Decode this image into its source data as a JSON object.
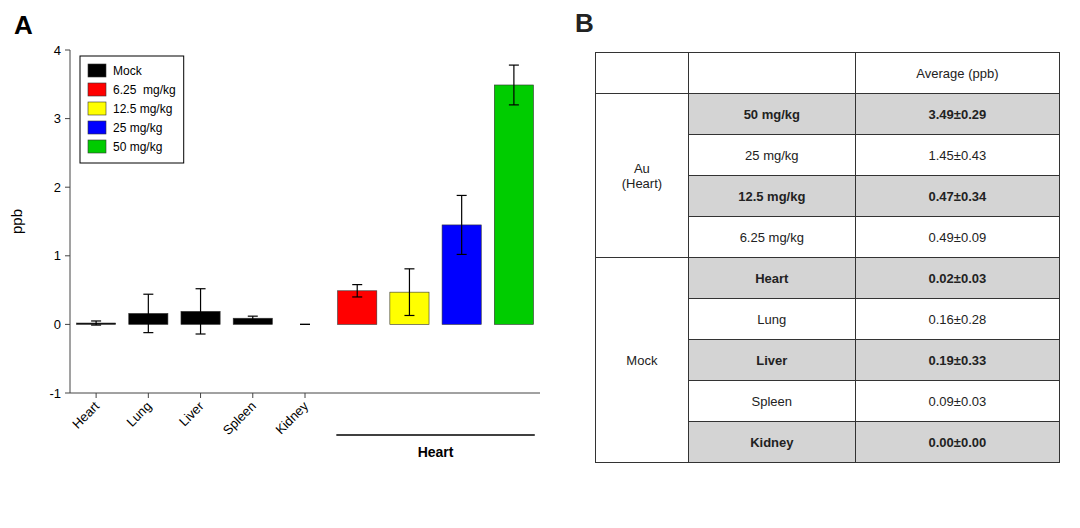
{
  "chart_data": [
    {
      "type": "bar",
      "title": "A",
      "categories": [
        "Heart",
        "Lung",
        "Liver",
        "Spleen",
        "Kidney",
        null,
        null,
        null,
        null
      ],
      "series": [
        {
          "name": "Mock",
          "color": "#000000",
          "values": [
            0.02,
            0.16,
            0.19,
            0.09,
            0.0,
            null,
            null,
            null,
            null
          ],
          "errors": [
            0.03,
            0.28,
            0.33,
            0.03,
            0.0,
            null,
            null,
            null,
            null
          ]
        },
        {
          "name": "6.25  mg/kg",
          "color": "#ff0000",
          "values": [
            null,
            null,
            null,
            null,
            null,
            0.49,
            null,
            null,
            null
          ],
          "errors": [
            null,
            null,
            null,
            null,
            null,
            0.09,
            null,
            null,
            null
          ]
        },
        {
          "name": "12.5 mg/kg",
          "color": "#ffff00",
          "values": [
            null,
            null,
            null,
            null,
            null,
            null,
            0.47,
            null,
            null
          ],
          "errors": [
            null,
            null,
            null,
            null,
            null,
            null,
            0.34,
            null,
            null
          ]
        },
        {
          "name": "25 mg/kg",
          "color": "#0000ff",
          "values": [
            null,
            null,
            null,
            null,
            null,
            null,
            null,
            1.45,
            null
          ],
          "errors": [
            null,
            null,
            null,
            null,
            null,
            null,
            null,
            0.43,
            null
          ]
        },
        {
          "name": "50 mg/kg",
          "color": "#00cc00",
          "values": [
            null,
            null,
            null,
            null,
            null,
            null,
            null,
            null,
            3.49
          ],
          "errors": [
            null,
            null,
            null,
            null,
            null,
            null,
            null,
            null,
            0.29
          ]
        }
      ],
      "ylabel": "ppb",
      "ylim": [
        -1,
        4
      ],
      "yticks": [
        -1,
        0,
        1,
        2,
        3,
        4
      ],
      "grid": false,
      "legend": "upper-left",
      "annotations": [
        {
          "text": "Heart"
        }
      ]
    },
    {
      "type": "table",
      "title": "B",
      "header": "Average (ppb)",
      "groups": [
        {
          "name": "Au\n(Heart)",
          "categories": [
            "50 mg/kg",
            "25 mg/kg",
            "12.5 mg/kg",
            "6.25 mg/kg"
          ],
          "values": [
            3.49,
            1.45,
            0.47,
            0.49
          ],
          "errors": [
            0.29,
            0.43,
            0.34,
            0.09
          ],
          "value_labels": [
            "3.49±0.29",
            "1.45±0.43",
            "0.47±0.34",
            "0.49±0.09"
          ]
        },
        {
          "name": "Mock",
          "categories": [
            "Heart",
            "Lung",
            "Liver",
            "Spleen",
            "Kidney"
          ],
          "values": [
            0.02,
            0.16,
            0.19,
            0.09,
            0.0
          ],
          "errors": [
            0.03,
            0.28,
            0.33,
            0.03,
            0.0
          ],
          "value_labels": [
            "0.02±0.03",
            "0.16±0.28",
            "0.19±0.33",
            "0.09±0.03",
            "0.00±0.00"
          ]
        }
      ]
    }
  ]
}
